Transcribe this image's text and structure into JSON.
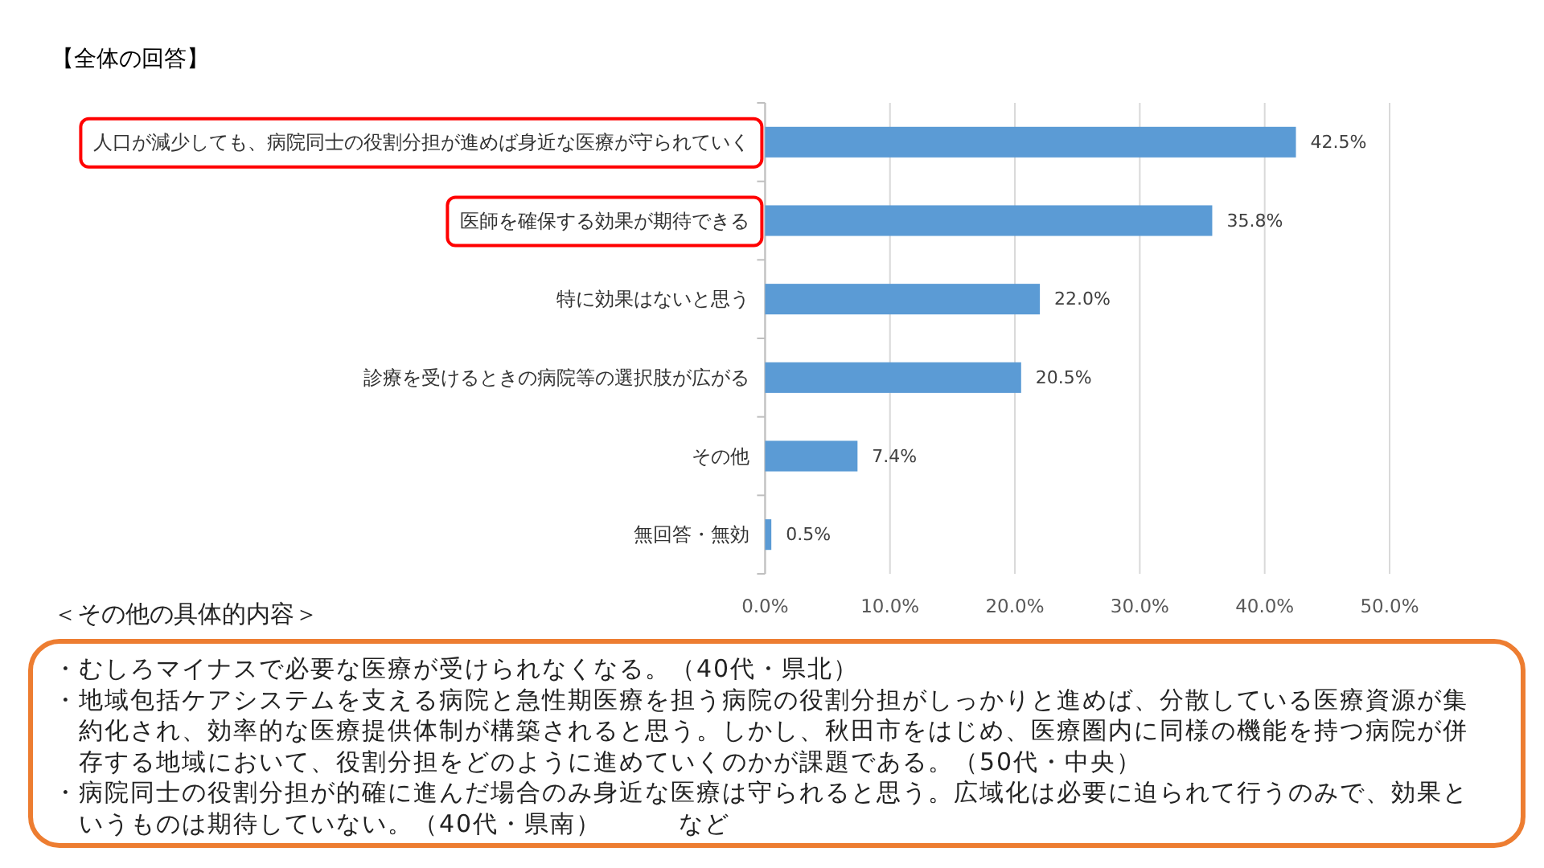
{
  "chart_data": {
    "type": "bar",
    "orientation": "horizontal",
    "title": "【全体の回答】",
    "categories": [
      "人口が減少しても、病院同士の役割分担が進めば身近な医療が守られていく",
      "医師を確保する効果が期待できる",
      "特に効果はないと思う",
      "診療を受けるときの病院等の選択肢が広がる",
      "その他",
      "無回答・無効"
    ],
    "values": [
      42.5,
      35.8,
      22.0,
      20.5,
      7.4,
      0.5
    ],
    "value_labels": [
      "42.5%",
      "35.8%",
      "22.0%",
      "20.5%",
      "7.4%",
      "0.5%"
    ],
    "color": "#5b9bd5",
    "xlim": [
      0,
      50
    ],
    "xticks": [
      {
        "value": 0,
        "label": "0.0%"
      },
      {
        "value": 10,
        "label": "10.0%"
      },
      {
        "value": 20,
        "label": "20.0%"
      },
      {
        "value": 30,
        "label": "30.0%"
      },
      {
        "value": 40,
        "label": "40.0%"
      },
      {
        "value": 50,
        "label": "50.0%"
      }
    ],
    "grid": "x",
    "annotations": [
      "＜その他の具体的内容＞",
      "・むしろマイナスで必要な医療が受けられなくなる。（40代・県北）",
      "・地域包括ケアシステムを支える病院と急性期医療を担う病院の役割分担がしっかりと進めば、分散している医療資源が集約化され、効率的な医療提供体制が構築されると思う。しかし、秋田市をはじめ、医療圏内に同様の機能を持つ病院が併存する地域において、役割分担をどのように進めていくのかが課題である。（50代・中央）",
      "・病院同士の役割分担が的確に進んだ場合のみ身近な医療は守られると思う。広域化は必要に迫られて行うのみで、効果というものは期待していない。（40代・県南）　　　など"
    ]
  }
}
